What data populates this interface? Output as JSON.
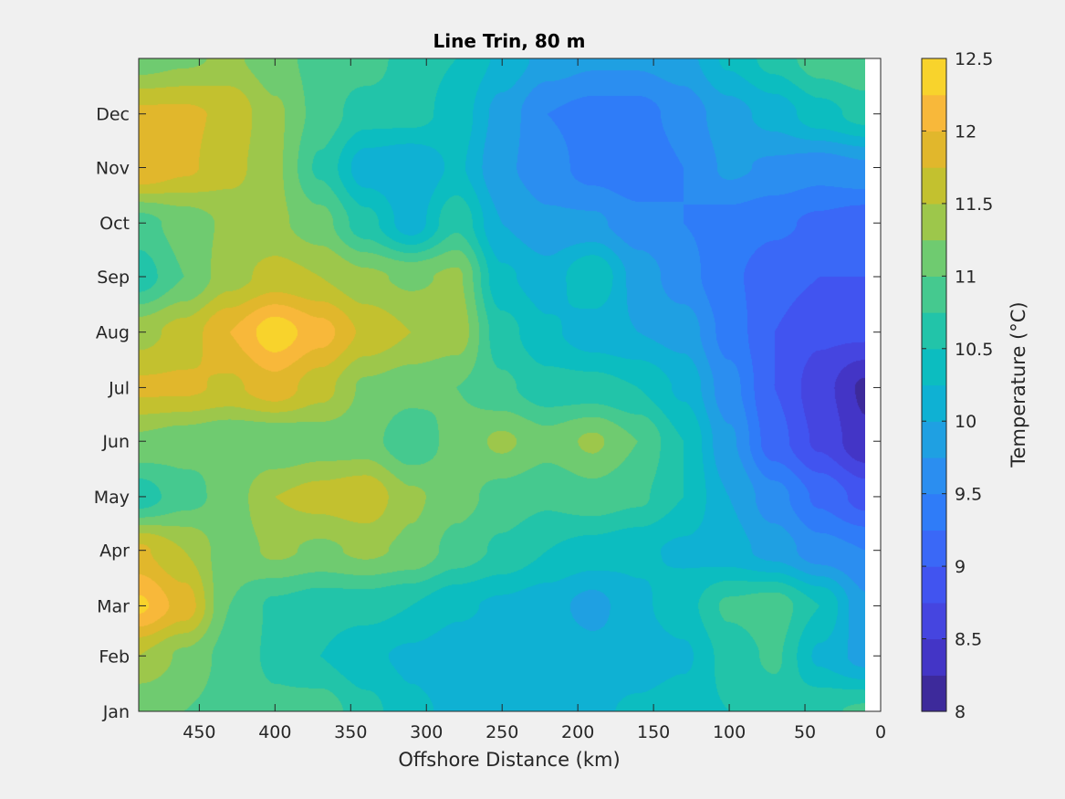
{
  "chart_data": {
    "type": "heatmap",
    "subtype": "filled-contour",
    "title": "Line Trin, 80 m",
    "xlabel": "Offshore Distance (km)",
    "ylabel": "",
    "x_reversed": true,
    "xlim": [
      490,
      0
    ],
    "x_data_range": [
      490,
      10
    ],
    "xticks": [
      450,
      400,
      350,
      300,
      250,
      200,
      150,
      100,
      50,
      0
    ],
    "yticks": [
      "Jan",
      "Feb",
      "Mar",
      "Apr",
      "May",
      "Jun",
      "Jul",
      "Aug",
      "Sep",
      "Oct",
      "Nov",
      "Dec"
    ],
    "ytick_days": [
      1,
      32,
      60,
      91,
      121,
      152,
      182,
      213,
      244,
      274,
      305,
      335
    ],
    "ylim_days": [
      1,
      366
    ],
    "colorbar": {
      "label": "Temperature (°C)",
      "range": [
        8,
        12.5
      ],
      "ticks": [
        "8",
        "8.5",
        "9",
        "9.5",
        "10",
        "10.5",
        "11",
        "11.5",
        "12",
        "12.5"
      ],
      "levels": [
        8,
        8.25,
        8.5,
        8.75,
        9,
        9.25,
        9.5,
        9.75,
        10,
        10.25,
        10.5,
        10.75,
        11,
        11.25,
        11.5,
        11.75,
        12,
        12.25,
        12.5
      ],
      "colors": [
        "#3d2a9b",
        "#4335c6",
        "#4545e0",
        "#4154f0",
        "#3a68f7",
        "#2f7cf8",
        "#2b8ef0",
        "#1fa0e2",
        "#0fb1d3",
        "#0cbdc0",
        "#22c4a9",
        "#45c98f",
        "#6fcb70",
        "#9dc74b",
        "#c3c12f",
        "#e1b72c",
        "#f8b83a",
        "#f8d32c"
      ]
    },
    "temperature_field": {
      "x_km": [
        490,
        460,
        430,
        400,
        370,
        340,
        310,
        280,
        250,
        220,
        190,
        160,
        130,
        100,
        70,
        40,
        10
      ],
      "days": [
        1,
        32,
        60,
        91,
        121,
        152,
        182,
        213,
        244,
        274,
        305,
        335,
        366
      ],
      "values": [
        [
          11.0,
          11.0,
          10.9,
          10.8,
          10.9,
          10.6,
          10.3,
          10.2,
          10.1,
          10.1,
          10.2,
          10.3,
          10.4,
          10.5,
          10.6,
          10.7,
          10.8
        ],
        [
          11.5,
          11.2,
          10.9,
          10.7,
          10.5,
          10.3,
          10.2,
          10.1,
          10.1,
          10.2,
          10.1,
          10.1,
          10.2,
          10.6,
          10.8,
          10.2,
          9.9
        ],
        [
          12.3,
          11.9,
          11.0,
          10.7,
          10.6,
          10.6,
          10.5,
          10.3,
          10.2,
          10.1,
          9.9,
          10.2,
          10.4,
          10.8,
          10.9,
          10.5,
          9.8
        ],
        [
          11.8,
          11.5,
          11.1,
          11.3,
          11.2,
          11.3,
          11.2,
          10.9,
          10.7,
          10.5,
          10.4,
          10.3,
          10.2,
          10.1,
          9.9,
          9.6,
          9.5
        ],
        [
          10.6,
          10.9,
          11.1,
          11.5,
          11.6,
          11.7,
          11.3,
          11.1,
          10.9,
          10.8,
          10.9,
          10.8,
          10.5,
          10.0,
          9.6,
          9.2,
          8.9
        ],
        [
          11.2,
          11.1,
          11.0,
          11.0,
          11.1,
          11.1,
          10.8,
          11.1,
          11.3,
          11.1,
          11.3,
          11.0,
          10.5,
          9.8,
          9.1,
          8.7,
          8.3
        ],
        [
          11.8,
          11.8,
          11.7,
          11.9,
          11.6,
          11.2,
          11.1,
          11.0,
          10.8,
          10.6,
          10.6,
          10.5,
          10.2,
          9.6,
          9.0,
          8.6,
          8.2
        ],
        [
          11.4,
          11.6,
          12.0,
          12.4,
          12.1,
          11.7,
          11.5,
          11.4,
          10.6,
          10.3,
          10.1,
          10.0,
          9.9,
          9.4,
          9.0,
          8.8,
          8.8
        ],
        [
          10.6,
          11.0,
          11.4,
          11.6,
          11.5,
          11.3,
          11.2,
          11.3,
          10.3,
          10.1,
          10.5,
          9.9,
          9.6,
          9.3,
          9.1,
          9.0,
          9.0
        ],
        [
          10.9,
          11.1,
          11.3,
          11.3,
          11.1,
          10.6,
          10.1,
          10.7,
          10.0,
          9.8,
          9.8,
          9.6,
          9.5,
          9.4,
          9.3,
          9.2,
          9.1
        ],
        [
          12.0,
          11.8,
          11.6,
          11.3,
          10.7,
          10.1,
          10.0,
          10.3,
          9.8,
          9.6,
          9.4,
          9.3,
          9.5,
          9.8,
          9.7,
          9.6,
          9.7
        ],
        [
          11.8,
          11.8,
          11.7,
          11.3,
          10.9,
          10.6,
          10.6,
          10.4,
          9.9,
          9.5,
          9.4,
          9.4,
          9.6,
          9.9,
          10.1,
          10.4,
          10.6
        ],
        [
          11.1,
          11.2,
          11.3,
          11.1,
          10.9,
          10.9,
          10.6,
          10.5,
          10.2,
          9.9,
          9.8,
          9.8,
          9.9,
          10.3,
          10.6,
          10.9,
          11.0
        ]
      ]
    }
  }
}
